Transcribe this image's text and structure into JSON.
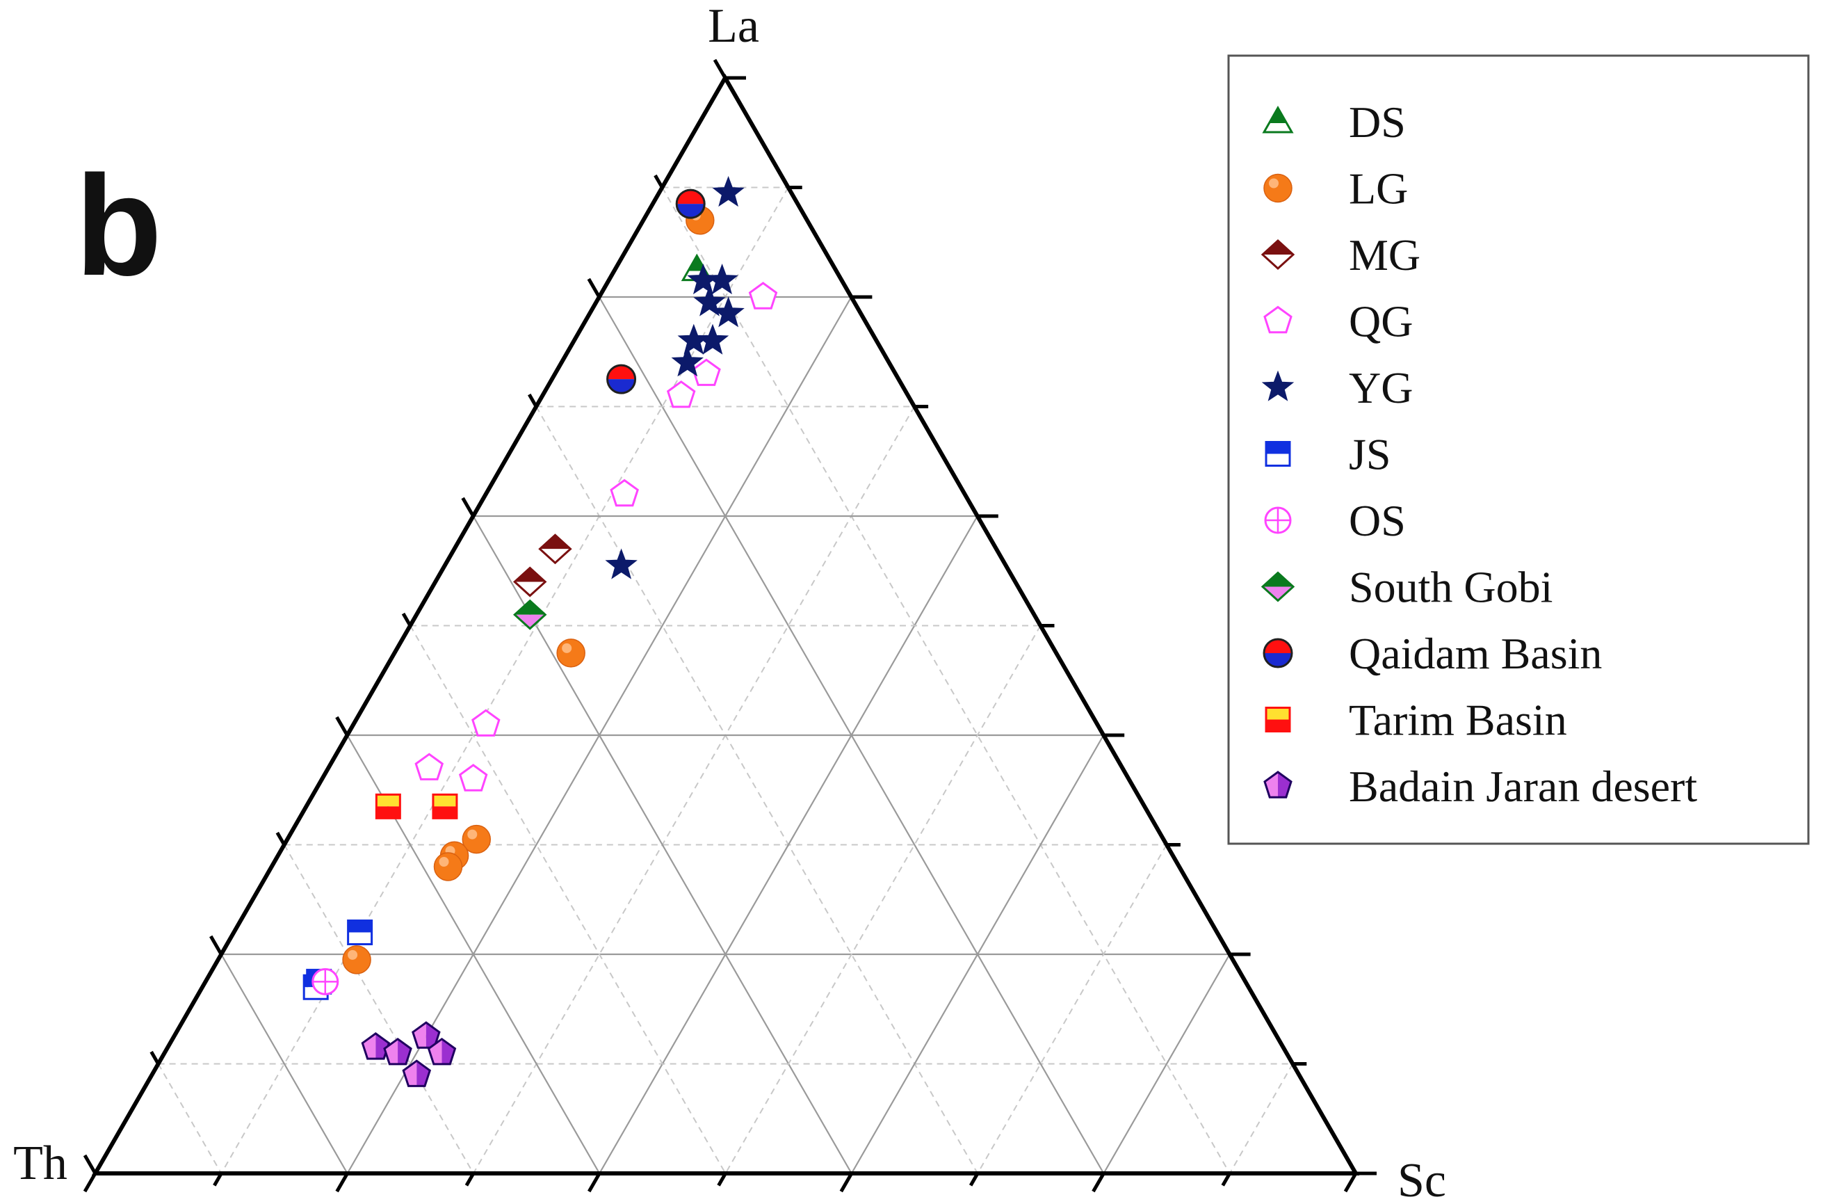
{
  "panel_label": "b",
  "colors": {
    "axis": "#000000",
    "grid_solid": "#9a9a9a",
    "grid_dashed": "#c8c8c8",
    "legend_border": "#555555"
  },
  "chart_data": {
    "type": "scatter",
    "subtype": "ternary",
    "title": "",
    "vertices": {
      "top": "La",
      "left": "Th",
      "right": "Sc"
    },
    "grid": true,
    "grid_major_step": 0.2,
    "grid_minor_step": 0.1,
    "legend_placement": "top-right",
    "series": [
      {
        "name": "DS",
        "marker": "triangle-half",
        "colors": [
          "#0a7a1e",
          "#ffffff"
        ],
        "points": [
          {
            "La": 0.825,
            "Th": 0.11,
            "Sc": 0.065
          }
        ]
      },
      {
        "name": "LG",
        "marker": "sphere",
        "colors": [
          "#f57a18",
          "#ffc08a"
        ],
        "points": [
          {
            "La": 0.87,
            "Th": 0.085,
            "Sc": 0.045
          },
          {
            "La": 0.475,
            "Th": 0.385,
            "Sc": 0.14
          },
          {
            "La": 0.305,
            "Th": 0.545,
            "Sc": 0.15
          },
          {
            "La": 0.29,
            "Th": 0.57,
            "Sc": 0.14
          },
          {
            "La": 0.28,
            "Th": 0.58,
            "Sc": 0.14
          },
          {
            "La": 0.195,
            "Th": 0.695,
            "Sc": 0.11
          }
        ]
      },
      {
        "name": "MG",
        "marker": "diamond-half",
        "colors": [
          "#7a1010",
          "#ffffff"
        ],
        "points": [
          {
            "La": 0.57,
            "Th": 0.35,
            "Sc": 0.08
          },
          {
            "La": 0.54,
            "Th": 0.385,
            "Sc": 0.075
          }
        ]
      },
      {
        "name": "QG",
        "marker": "pentagon",
        "colors": [
          "#ff44ff",
          "#ffffff"
        ],
        "points": [
          {
            "La": 0.8,
            "Th": 0.07,
            "Sc": 0.13
          },
          {
            "La": 0.71,
            "Th": 0.18,
            "Sc": 0.11
          },
          {
            "La": 0.73,
            "Th": 0.15,
            "Sc": 0.12
          },
          {
            "La": 0.62,
            "Th": 0.27,
            "Sc": 0.11
          },
          {
            "La": 0.41,
            "Th": 0.485,
            "Sc": 0.105
          },
          {
            "La": 0.37,
            "Th": 0.55,
            "Sc": 0.08
          },
          {
            "La": 0.36,
            "Th": 0.52,
            "Sc": 0.12
          }
        ]
      },
      {
        "name": "YG",
        "marker": "star",
        "colors": [
          "#0c1a6a",
          "#0c1a6a"
        ],
        "points": [
          {
            "La": 0.895,
            "Th": 0.05,
            "Sc": 0.055
          },
          {
            "La": 0.815,
            "Th": 0.11,
            "Sc": 0.075
          },
          {
            "La": 0.815,
            "Th": 0.095,
            "Sc": 0.09
          },
          {
            "La": 0.795,
            "Th": 0.115,
            "Sc": 0.09
          },
          {
            "La": 0.785,
            "Th": 0.105,
            "Sc": 0.11
          },
          {
            "La": 0.76,
            "Th": 0.145,
            "Sc": 0.095
          },
          {
            "La": 0.76,
            "Th": 0.13,
            "Sc": 0.11
          },
          {
            "La": 0.74,
            "Th": 0.16,
            "Sc": 0.1
          },
          {
            "La": 0.555,
            "Th": 0.305,
            "Sc": 0.14
          }
        ]
      },
      {
        "name": "JS",
        "marker": "square-half",
        "colors": [
          "#1030e0",
          "#ffffff"
        ],
        "points": [
          {
            "La": 0.22,
            "Th": 0.68,
            "Sc": 0.1
          },
          {
            "La": 0.175,
            "Th": 0.735,
            "Sc": 0.09
          },
          {
            "La": 0.17,
            "Th": 0.74,
            "Sc": 0.09
          }
        ]
      },
      {
        "name": "OS",
        "marker": "circle-plus",
        "colors": [
          "#ff44ff",
          "#ffffff"
        ],
        "points": [
          {
            "La": 0.175,
            "Th": 0.73,
            "Sc": 0.095
          }
        ]
      },
      {
        "name": "South Gobi",
        "marker": "diamond-half",
        "colors": [
          "#0a7a1e",
          "#ee82ee"
        ],
        "points": [
          {
            "La": 0.51,
            "Th": 0.4,
            "Sc": 0.09
          }
        ]
      },
      {
        "name": "Qaidam Basin",
        "marker": "circle-half",
        "colors": [
          "#ff1010",
          "#1a2ad0"
        ],
        "points": [
          {
            "La": 0.885,
            "Th": 0.085,
            "Sc": 0.03
          },
          {
            "La": 0.725,
            "Th": 0.22,
            "Sc": 0.055
          }
        ]
      },
      {
        "name": "Tarim Basin",
        "marker": "square-half",
        "colors": [
          "#ffe030",
          "#ff1010"
        ],
        "points": [
          {
            "La": 0.335,
            "Th": 0.6,
            "Sc": 0.065
          },
          {
            "La": 0.335,
            "Th": 0.555,
            "Sc": 0.11
          }
        ]
      },
      {
        "name": "Badain Jaran desert",
        "marker": "pentagon-half",
        "colors": [
          "#200060",
          "#ee82ee"
        ],
        "points": [
          {
            "La": 0.115,
            "Th": 0.72,
            "Sc": 0.165
          },
          {
            "La": 0.11,
            "Th": 0.705,
            "Sc": 0.185
          },
          {
            "La": 0.125,
            "Th": 0.675,
            "Sc": 0.2
          },
          {
            "La": 0.09,
            "Th": 0.7,
            "Sc": 0.21
          },
          {
            "La": 0.11,
            "Th": 0.67,
            "Sc": 0.22
          }
        ]
      }
    ]
  }
}
